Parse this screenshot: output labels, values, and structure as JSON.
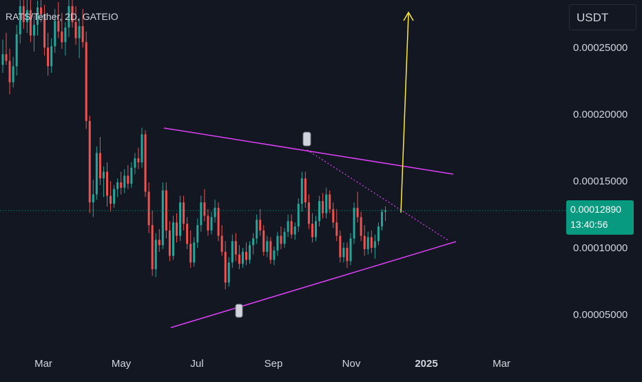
{
  "header": {
    "title": "RATS/Tether, 2D, GATEIO",
    "currency": "USDT"
  },
  "price_tag": {
    "price": "0.00012890",
    "countdown": "13:40:56"
  },
  "y_axis": {
    "ticks": [
      "0.00025000",
      "0.00020000",
      "0.00015000",
      "0.00010000",
      "0.00005000"
    ]
  },
  "x_axis": {
    "ticks": [
      "Mar",
      "May",
      "Jul",
      "Sep",
      "Nov",
      "2025",
      "Mar"
    ]
  },
  "colors": {
    "background": "#131722",
    "up": "#26a69a",
    "down": "#ef5350",
    "triangle": "#e040fb",
    "target_arrow": "#ffeb3b",
    "price_line": "#089981"
  },
  "chart_data": {
    "type": "candlestick",
    "title": "RATS/Tether, 2D, GATEIO",
    "xlabel": "",
    "ylabel": "",
    "ylim": [
      1e-05,
      0.00029
    ],
    "x_ticks": [
      "Mar",
      "May",
      "Jul",
      "Sep",
      "Nov",
      "2025",
      "Mar"
    ],
    "y_ticks": [
      0.00025,
      0.0002,
      0.00015,
      0.0001,
      5e-05
    ],
    "last_price": 0.0001289,
    "candles": [
      [
        0.000238,
        0.000257,
        0.000232,
        0.000246
      ],
      [
        0.000246,
        0.000262,
        0.000238,
        0.000241
      ],
      [
        0.000241,
        0.00025,
        0.000216,
        0.000225
      ],
      [
        0.000225,
        0.000244,
        0.000221,
        0.000237
      ],
      [
        0.000237,
        0.000268,
        0.00023,
        0.000261
      ],
      [
        0.000261,
        0.00029,
        0.000254,
        0.000282
      ],
      [
        0.000282,
        0.00029,
        0.000265,
        0.00027
      ],
      [
        0.00027,
        0.000288,
        0.000262,
        0.000279
      ],
      [
        0.000279,
        0.00029,
        0.000255,
        0.00026
      ],
      [
        0.00026,
        0.000275,
        0.000248,
        0.000268
      ],
      [
        0.000268,
        0.000286,
        0.00026,
        0.000281
      ],
      [
        0.000281,
        0.00029,
        0.00027,
        0.000276
      ],
      [
        0.000276,
        0.000283,
        0.000245,
        0.000251
      ],
      [
        0.000251,
        0.000262,
        0.00023,
        0.000237
      ],
      [
        0.000237,
        0.000258,
        0.000232,
        0.000252
      ],
      [
        0.000252,
        0.00028,
        0.000247,
        0.000271
      ],
      [
        0.000271,
        0.000285,
        0.000258,
        0.000263
      ],
      [
        0.000263,
        0.000277,
        0.00025,
        0.000255
      ],
      [
        0.000255,
        0.00027,
        0.000245,
        0.000266
      ],
      [
        0.000266,
        0.000288,
        0.000259,
        0.000282
      ],
      [
        0.000282,
        0.00029,
        0.000266,
        0.00027
      ],
      [
        0.00027,
        0.000282,
        0.000253,
        0.000258
      ],
      [
        0.000258,
        0.000273,
        0.000243,
        0.000267
      ],
      [
        0.000267,
        0.00028,
        0.000251,
        0.000255
      ],
      [
        0.000255,
        0.000263,
        0.00019,
        0.000196
      ],
      [
        0.000196,
        0.0002,
        0.000127,
        0.000135
      ],
      [
        0.000135,
        0.000152,
        0.000124,
        0.000141
      ],
      [
        0.000141,
        0.000177,
        0.000137,
        0.000172
      ],
      [
        0.000172,
        0.000184,
        0.000148,
        0.000153
      ],
      [
        0.000153,
        0.000162,
        0.000139,
        0.000158
      ],
      [
        0.000158,
        0.000165,
        0.000132,
        0.00014
      ],
      [
        0.00014,
        0.000151,
        0.000128,
        0.000134
      ],
      [
        0.000134,
        0.000148,
        0.000131,
        0.000145
      ],
      [
        0.000145,
        0.000153,
        0.000139,
        0.00015
      ],
      [
        0.00015,
        0.000158,
        0.000141,
        0.000146
      ],
      [
        0.000146,
        0.00016,
        0.000142,
        0.000155
      ],
      [
        0.000155,
        0.000163,
        0.000145,
        0.000149
      ],
      [
        0.000149,
        0.000165,
        0.000146,
        0.000161
      ],
      [
        0.000161,
        0.000172,
        0.000156,
        0.000168
      ],
      [
        0.000168,
        0.000176,
        0.00016,
        0.000165
      ],
      [
        0.000165,
        0.000191,
        0.000161,
        0.000186
      ],
      [
        0.000186,
        0.000189,
        0.000139,
        0.000143
      ],
      [
        0.000143,
        0.00015,
        0.000112,
        0.000118
      ],
      [
        0.000118,
        0.000129,
        8e-05,
        8.5e-05
      ],
      [
        8.5e-05,
        0.000112,
        7.9e-05,
        0.000107
      ],
      [
        0.000107,
        0.000115,
        9.8e-05,
        0.000103
      ],
      [
        0.000103,
        0.00015,
        0.0001,
        0.000144
      ],
      [
        0.000144,
        0.00015,
        0.000108,
        0.000114
      ],
      [
        0.000114,
        0.000121,
        9.1e-05,
        9.5e-05
      ],
      [
        9.5e-05,
        0.000125,
        9.2e-05,
        0.00012
      ],
      [
        0.00012,
        0.000127,
        0.000105,
        0.00011
      ],
      [
        0.00011,
        0.00014,
        0.000106,
        0.000135
      ],
      [
        0.000135,
        0.00014,
        0.000114,
        0.000119
      ],
      [
        0.000119,
        0.000124,
        0.0001,
        0.000104
      ],
      [
        0.000104,
        0.000114,
        8.6e-05,
        9e-05
      ],
      [
        9e-05,
        0.000109,
        8.7e-05,
        0.000105
      ],
      [
        0.000105,
        0.000123,
        0.000101,
        0.000118
      ],
      [
        0.000118,
        0.00014,
        0.000113,
        0.000135
      ],
      [
        0.000135,
        0.000145,
        0.000121,
        0.000125
      ],
      [
        0.000125,
        0.00013,
        0.00011,
        0.000114
      ],
      [
        0.000114,
        0.000128,
        0.000111,
        0.000124
      ],
      [
        0.000124,
        0.000137,
        0.00012,
        0.000131
      ],
      [
        0.000131,
        0.000135,
        0.000106,
        0.00011
      ],
      [
        0.00011,
        0.000118,
        9.5e-05,
        9.8e-05
      ],
      [
        9.8e-05,
        0.000106,
        7e-05,
        7.5e-05
      ],
      [
        7.5e-05,
        9.4e-05,
        7.2e-05,
        9e-05
      ],
      [
        9e-05,
        0.000111,
        8.6e-05,
        0.000106
      ],
      [
        0.000106,
        0.000112,
        9.1e-05,
        9.6e-05
      ],
      [
        9.6e-05,
        0.000103,
        8.5e-05,
        8.9e-05
      ],
      [
        8.9e-05,
        0.000101,
        8.6e-05,
        9.8e-05
      ],
      [
        9.8e-05,
        0.000105,
        8.8e-05,
        9.2e-05
      ],
      [
        9.2e-05,
        0.000106,
        8.9e-05,
        0.000103
      ],
      [
        0.000103,
        0.000112,
        9.6e-05,
        0.000108
      ],
      [
        0.000108,
        0.000126,
        0.000104,
        0.000122
      ],
      [
        0.000122,
        0.00013,
        0.00011,
        0.000114
      ],
      [
        0.000114,
        0.000118,
        9.5e-05,
        9.8e-05
      ],
      [
        9.8e-05,
        0.00011,
        9.4e-05,
        0.000106
      ],
      [
        0.000106,
        0.000109,
        8.9e-05,
        9.2e-05
      ],
      [
        9.2e-05,
        0.000102,
        8.8e-05,
        9.9e-05
      ],
      [
        9.9e-05,
        0.000113,
        9.5e-05,
        0.00011
      ],
      [
        0.00011,
        0.000117,
        0.0001,
        0.000104
      ],
      [
        0.000104,
        0.000116,
        0.000101,
        0.000113
      ],
      [
        0.000113,
        0.000126,
        0.000109,
        0.000121
      ],
      [
        0.000121,
        0.000126,
        0.000108,
        0.000111
      ],
      [
        0.000111,
        0.00012,
        0.000107,
        0.000117
      ],
      [
        0.000117,
        0.000138,
        0.000113,
        0.000134
      ],
      [
        0.000134,
        0.000158,
        0.000128,
        0.000153
      ],
      [
        0.000153,
        0.000158,
        0.000131,
        0.000135
      ],
      [
        0.000135,
        0.000141,
        0.000115,
        0.000119
      ],
      [
        0.000119,
        0.000127,
        0.000105,
        0.000109
      ],
      [
        0.000109,
        0.000125,
        0.000106,
        0.000121
      ],
      [
        0.000121,
        0.00014,
        0.000117,
        0.000136
      ],
      [
        0.000136,
        0.000142,
        0.000123,
        0.000127
      ],
      [
        0.000127,
        0.000146,
        0.000123,
        0.000141
      ],
      [
        0.000141,
        0.000144,
        0.000127,
        0.00013
      ],
      [
        0.00013,
        0.000135,
        0.000116,
        0.00012
      ],
      [
        0.00012,
        0.00013,
        0.000106,
        0.00011
      ],
      [
        0.00011,
        0.000114,
        9e-05,
        9.4e-05
      ],
      [
        9.4e-05,
        0.000105,
        9e-05,
        0.000101
      ],
      [
        0.000101,
        0.000105,
        8.6e-05,
        9.1e-05
      ],
      [
        9.1e-05,
        0.000112,
        8.8e-05,
        0.000108
      ],
      [
        0.000108,
        0.000135,
        0.000104,
        0.000131
      ],
      [
        0.000131,
        0.000143,
        0.00012,
        0.000124
      ],
      [
        0.000124,
        0.000128,
        0.000106,
        0.00011
      ],
      [
        0.00011,
        0.000118,
        9.5e-05,
        0.0001
      ],
      [
        0.0001,
        0.000113,
        9.6e-05,
        0.000109
      ],
      [
        0.000109,
        0.000114,
        9.7e-05,
        0.000101
      ],
      [
        0.000101,
        0.000111,
        9.3e-05,
        0.000106
      ],
      [
        0.000106,
        0.00012,
        0.000103,
        0.000117
      ],
      [
        0.000117,
        0.00013,
        0.000114,
        0.000128
      ],
      [
        0.000128,
        0.000132,
        0.000121,
        0.000129
      ]
    ]
  }
}
